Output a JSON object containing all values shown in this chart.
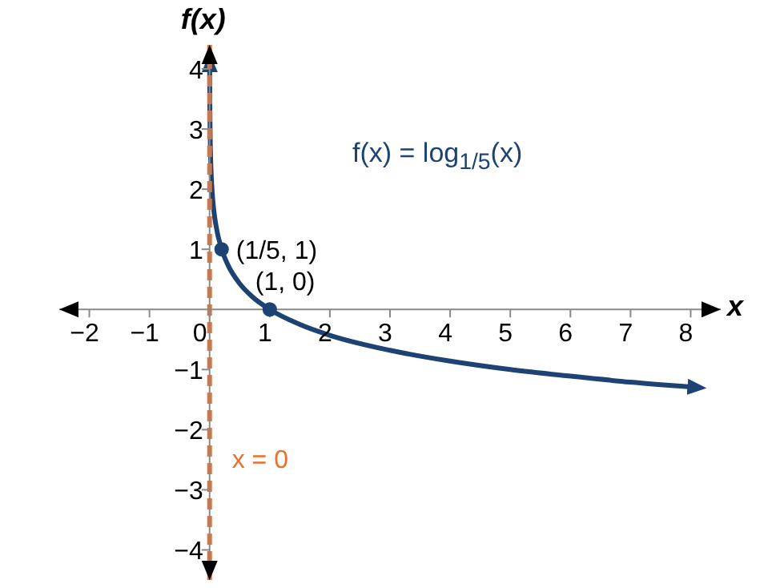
{
  "chart_data": {
    "type": "line",
    "xlabel": "x",
    "ylabel": "f(x)",
    "xlim": [
      -2.5,
      8.5
    ],
    "ylim": [
      -4.5,
      4.4
    ],
    "xticks": [
      {
        "value": -2,
        "label": "−2"
      },
      {
        "value": -1,
        "label": "−1"
      },
      0,
      1,
      2,
      3,
      4,
      5,
      6,
      7,
      8
    ],
    "yticks": [
      {
        "value": -4,
        "label": "−4"
      },
      {
        "value": -3,
        "label": "−3"
      },
      {
        "value": -2,
        "label": "−2"
      },
      {
        "value": -1,
        "label": "−1"
      },
      1,
      2,
      3,
      4
    ],
    "series": [
      {
        "type": "line",
        "color": "#1d4375",
        "marker": "none",
        "x": [
          0.0016,
          0.003,
          0.005,
          0.01,
          0.02,
          0.04,
          0.07,
          0.1,
          0.2,
          0.3,
          0.5,
          0.7,
          1,
          1.5,
          2,
          3,
          4,
          5,
          6,
          7,
          8
        ],
        "values": [
          4,
          3.61,
          3.29,
          2.86,
          2.43,
          2,
          1.65,
          1.43,
          1,
          0.75,
          0.43,
          0.22,
          0,
          -0.25,
          -0.43,
          -0.68,
          -0.86,
          -1,
          -1.11,
          -1.21,
          -1.29
        ]
      },
      {
        "type": "scatter",
        "color": "#1d4375",
        "marker": "circle",
        "x": [
          0.2,
          1
        ],
        "values": [
          1,
          0
        ]
      }
    ],
    "ref_lines": [
      {
        "axis": "x",
        "value": 0,
        "label": "x = 0",
        "color": "#ec6f2d",
        "line_style": "dashed"
      }
    ],
    "annotations": [
      "f(x) = log$_{1/5}$(x)",
      {
        "text": "(1/5, 1)",
        "x": 0.2,
        "y": 1
      },
      {
        "text": "(1, 0)",
        "x": 1,
        "y": 0
      }
    ]
  }
}
